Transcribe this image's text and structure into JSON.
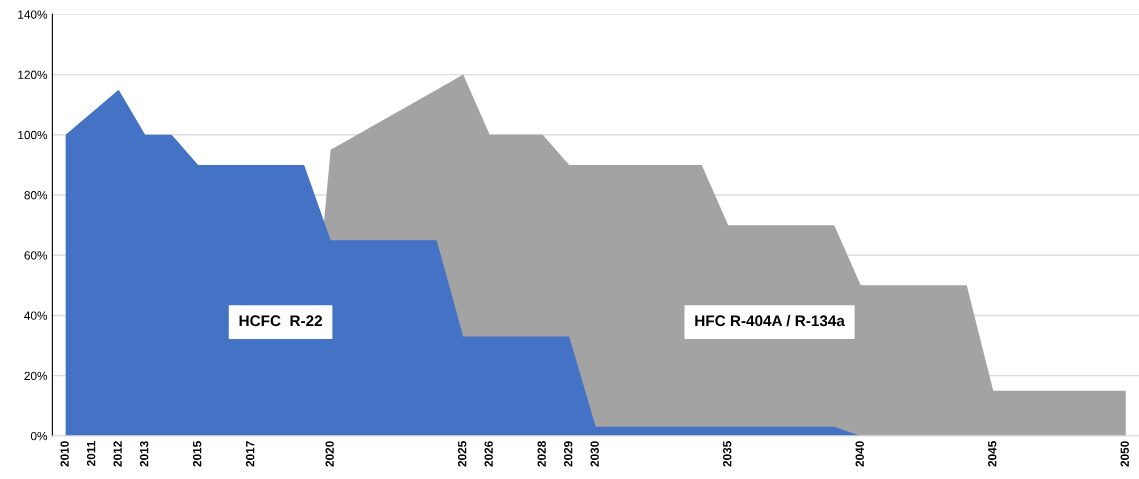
{
  "chart_data": {
    "type": "area",
    "x": [
      2010,
      2011,
      2012,
      2013,
      2014,
      2015,
      2016,
      2017,
      2018,
      2019,
      2020,
      2021,
      2022,
      2023,
      2024,
      2025,
      2026,
      2027,
      2028,
      2029,
      2030,
      2031,
      2032,
      2033,
      2034,
      2035,
      2036,
      2037,
      2038,
      2039,
      2040,
      2041,
      2042,
      2043,
      2044,
      2045,
      2046,
      2047,
      2048,
      2049,
      2050
    ],
    "series": [
      {
        "name": "HFC R-404A / R-134a",
        "color": "#a3a3a3",
        "values": [
          null,
          null,
          null,
          null,
          null,
          null,
          null,
          null,
          null,
          0,
          95,
          100,
          105,
          110,
          115,
          120,
          100,
          100,
          100,
          90,
          90,
          90,
          90,
          90,
          90,
          70,
          70,
          70,
          70,
          70,
          50,
          50,
          50,
          50,
          50,
          15,
          15,
          15,
          15,
          15,
          15
        ]
      },
      {
        "name": "HCFC  R-22",
        "color": "#4472c4",
        "values": [
          100,
          107.5,
          115,
          100,
          100,
          90,
          90,
          90,
          90,
          90,
          65,
          65,
          65,
          65,
          65,
          33,
          33,
          33,
          33,
          33,
          3,
          3,
          3,
          3,
          3,
          3,
          3,
          3,
          3,
          3,
          0,
          null,
          null,
          null,
          null,
          null,
          null,
          null,
          null,
          null,
          null
        ]
      }
    ],
    "xlim": [
      2009.5,
      2050.5
    ],
    "xticks": [
      2010,
      2011,
      2012,
      2013,
      2015,
      2017,
      2020,
      2025,
      2026,
      2028,
      2029,
      2030,
      2035,
      2040,
      2045,
      2050
    ],
    "ylim": [
      0,
      140
    ],
    "yticks": [
      {
        "value": 0,
        "label": "0%"
      },
      {
        "value": 20,
        "label": "20%"
      },
      {
        "value": 40,
        "label": "40%"
      },
      {
        "value": 60,
        "label": "60%"
      },
      {
        "value": 80,
        "label": "80%"
      },
      {
        "value": 100,
        "label": "100%"
      },
      {
        "value": 120,
        "label": "120%"
      },
      {
        "value": 140,
        "label": "140%"
      }
    ],
    "grid": "y",
    "legend": false
  }
}
